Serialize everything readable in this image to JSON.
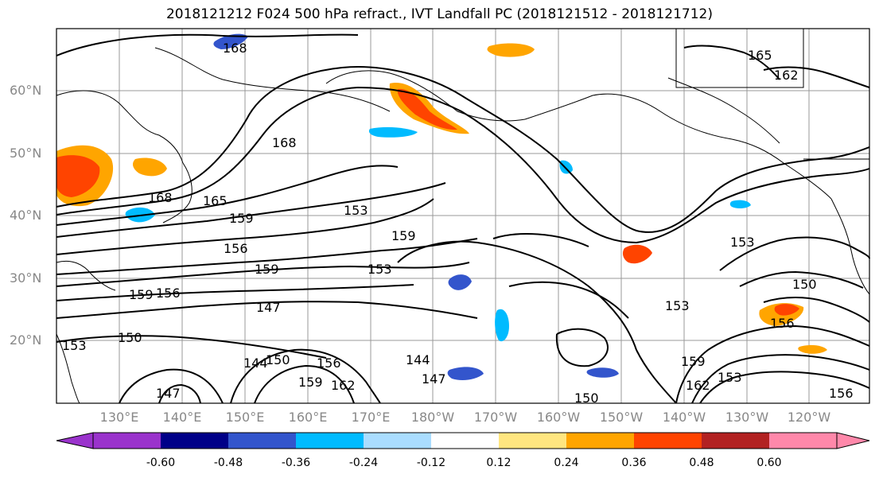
{
  "title": "2018121212 F024 500 hPa refract., IVT Landfall PC (2018121512 - 2018121712)",
  "axes": {
    "lat_labels": [
      "60°N",
      "50°N",
      "40°N",
      "30°N",
      "20°N"
    ],
    "lon_labels": [
      "130°E",
      "140°E",
      "150°E",
      "160°E",
      "170°E",
      "180°W",
      "170°W",
      "160°W",
      "150°W",
      "140°W",
      "130°W",
      "120°W"
    ]
  },
  "contour_labels": [
    "168",
    "168",
    "165",
    "165",
    "162",
    "168",
    "153",
    "159",
    "159",
    "156",
    "159",
    "153",
    "159",
    "156",
    "147",
    "150",
    "153",
    "147",
    "144",
    "150",
    "156",
    "159",
    "162",
    "144",
    "147",
    "150",
    "153",
    "162",
    "159",
    "156",
    "150",
    "153",
    "153",
    "156"
  ],
  "colorbar": {
    "tick_labels": [
      "-0.60",
      "-0.48",
      "-0.36",
      "-0.24",
      "-0.12",
      "0.12",
      "0.24",
      "0.36",
      "0.48",
      "0.60"
    ],
    "colors": [
      "#9a33cc",
      "#000088",
      "#3355cc",
      "#00bbff",
      "#aaddff",
      "#ffffff",
      "#ffe680",
      "#ffa500",
      "#ff4400",
      "#b22222",
      "#ff88aa"
    ]
  }
}
